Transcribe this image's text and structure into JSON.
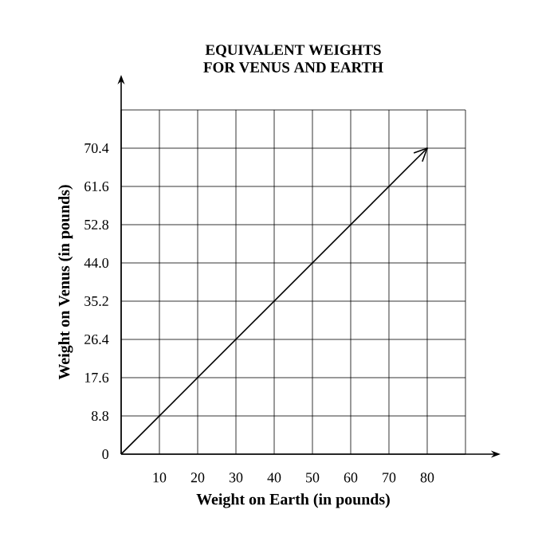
{
  "chart_data": {
    "type": "line",
    "title": "EQUIVALENT WEIGHTS\nFOR VENUS AND EARTH",
    "xlabel": "Weight on Earth (in pounds)",
    "ylabel": "Weight on Venus (in pounds)",
    "x": [
      0,
      80
    ],
    "series": [
      {
        "color": "#000000",
        "values": [
          0,
          70.4
        ]
      }
    ],
    "xlim": [
      0,
      90
    ],
    "ylim": [
      0,
      79.2
    ],
    "xticks": [
      10,
      20,
      30,
      40,
      50,
      60,
      70,
      80
    ],
    "yticks": [
      0,
      8.8,
      17.6,
      26.4,
      35.2,
      {
        "value": 44,
        "label": "44.0"
      },
      52.8,
      61.6,
      70.4
    ],
    "grid": true,
    "marker": "none",
    "line_style": "solid"
  }
}
